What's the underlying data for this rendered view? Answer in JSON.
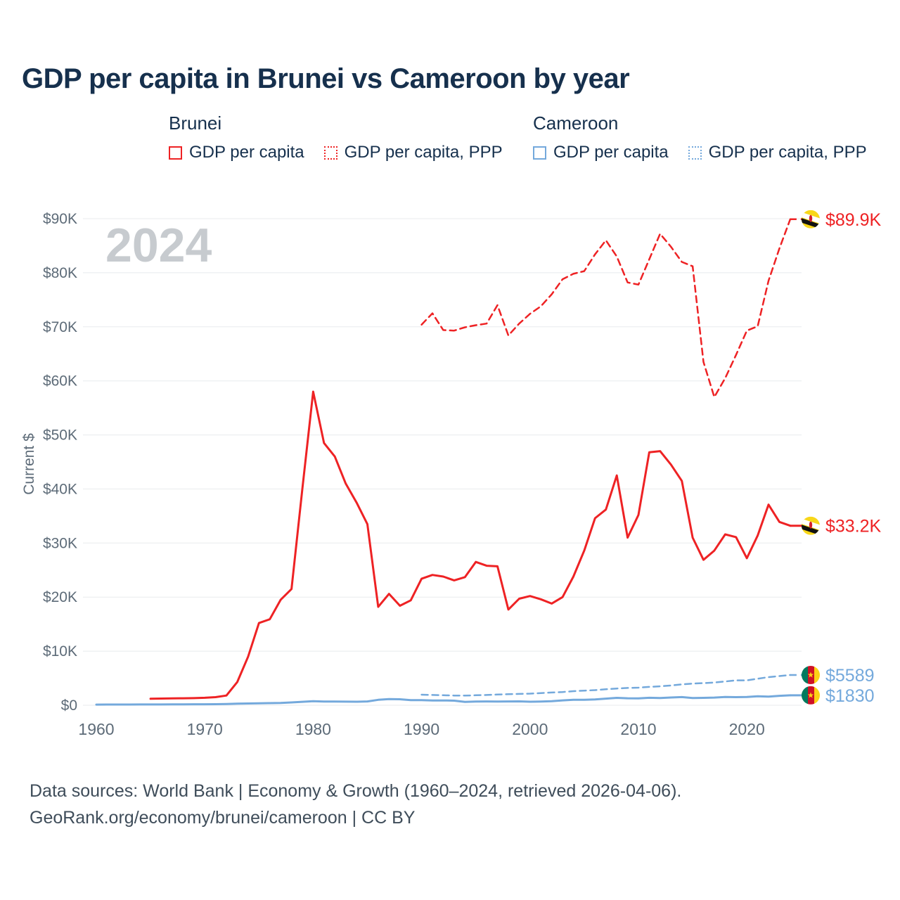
{
  "page": {
    "title": "GDP per capita in Brunei vs Cameroon by year"
  },
  "legend": {
    "groups": [
      {
        "label": "Brunei",
        "color": "#ee2224",
        "items": [
          {
            "label": "GDP per capita",
            "style": "solid"
          },
          {
            "label": "GDP per capita, PPP",
            "style": "dotted"
          }
        ]
      },
      {
        "label": "Cameroon",
        "color": "#74a9dc",
        "items": [
          {
            "label": "GDP per capita",
            "style": "solid"
          },
          {
            "label": "GDP per capita, PPP",
            "style": "dotted"
          }
        ]
      }
    ]
  },
  "footer": {
    "line1": "Data sources: World Bank | Economy & Growth (1960–2024, retrieved 2026-04-06).",
    "line2": "GeoRank.org/economy/brunei/cameroon | CC BY"
  },
  "chart_data": {
    "type": "line",
    "title": "GDP per capita in Brunei vs Cameroon by year",
    "xlabel": "",
    "ylabel": "Current $",
    "watermark": "2024",
    "grid": "horizontal",
    "xlim": [
      1960,
      2024
    ],
    "ylim": [
      0,
      90000
    ],
    "x_ticks": [
      1960,
      1970,
      1980,
      1990,
      2000,
      2010,
      2020
    ],
    "y_ticks": [
      {
        "value": 0,
        "label": "$0"
      },
      {
        "value": 10000,
        "label": "$10K"
      },
      {
        "value": 20000,
        "label": "$20K"
      },
      {
        "value": 30000,
        "label": "$30K"
      },
      {
        "value": 40000,
        "label": "$40K"
      },
      {
        "value": 50000,
        "label": "$50K"
      },
      {
        "value": 60000,
        "label": "$60K"
      },
      {
        "value": 70000,
        "label": "$70K"
      },
      {
        "value": 80000,
        "label": "$80K"
      },
      {
        "value": 90000,
        "label": "$90K"
      }
    ],
    "series": [
      {
        "id": "brunei-gdp-ppp",
        "name": "Brunei GDP per capita, PPP",
        "color": "#ee2224",
        "dash": true,
        "width": 2.5,
        "flag": "brunei",
        "end_label": "$89.9K",
        "points": [
          [
            1990,
            70400
          ],
          [
            1991,
            72500
          ],
          [
            1992,
            69400
          ],
          [
            1993,
            69300
          ],
          [
            1994,
            69900
          ],
          [
            1995,
            70300
          ],
          [
            1996,
            70600
          ],
          [
            1997,
            74000
          ],
          [
            1998,
            68400
          ],
          [
            1999,
            70600
          ],
          [
            2000,
            72400
          ],
          [
            2001,
            73800
          ],
          [
            2002,
            76000
          ],
          [
            2003,
            78800
          ],
          [
            2004,
            79800
          ],
          [
            2005,
            80300
          ],
          [
            2006,
            83400
          ],
          [
            2007,
            86000
          ],
          [
            2008,
            83000
          ],
          [
            2009,
            78200
          ],
          [
            2010,
            77800
          ],
          [
            2011,
            82500
          ],
          [
            2012,
            87200
          ],
          [
            2013,
            84800
          ],
          [
            2014,
            82000
          ],
          [
            2015,
            81200
          ],
          [
            2016,
            63500
          ],
          [
            2017,
            57000
          ],
          [
            2018,
            60500
          ],
          [
            2019,
            64800
          ],
          [
            2020,
            69300
          ],
          [
            2021,
            70100
          ],
          [
            2022,
            78500
          ],
          [
            2023,
            84500
          ],
          [
            2024,
            89900
          ]
        ]
      },
      {
        "id": "brunei-gdp",
        "name": "Brunei GDP per capita",
        "color": "#ee2224",
        "dash": false,
        "width": 3,
        "flag": "brunei",
        "end_label": "$33.2K",
        "points": [
          [
            1965,
            1200
          ],
          [
            1966,
            1240
          ],
          [
            1967,
            1270
          ],
          [
            1968,
            1290
          ],
          [
            1969,
            1320
          ],
          [
            1970,
            1380
          ],
          [
            1971,
            1500
          ],
          [
            1972,
            1800
          ],
          [
            1973,
            4300
          ],
          [
            1974,
            9000
          ],
          [
            1975,
            15200
          ],
          [
            1976,
            15900
          ],
          [
            1977,
            19500
          ],
          [
            1978,
            21500
          ],
          [
            1979,
            40000
          ],
          [
            1980,
            58000
          ],
          [
            1981,
            48500
          ],
          [
            1982,
            46000
          ],
          [
            1983,
            41000
          ],
          [
            1984,
            37500
          ],
          [
            1985,
            33500
          ],
          [
            1986,
            18200
          ],
          [
            1987,
            20600
          ],
          [
            1988,
            18400
          ],
          [
            1989,
            19400
          ],
          [
            1990,
            23400
          ],
          [
            1991,
            24100
          ],
          [
            1992,
            23800
          ],
          [
            1993,
            23100
          ],
          [
            1994,
            23700
          ],
          [
            1995,
            26500
          ],
          [
            1996,
            25800
          ],
          [
            1997,
            25700
          ],
          [
            1998,
            17700
          ],
          [
            1999,
            19700
          ],
          [
            2000,
            20200
          ],
          [
            2001,
            19600
          ],
          [
            2002,
            18800
          ],
          [
            2003,
            20000
          ],
          [
            2004,
            23800
          ],
          [
            2005,
            28600
          ],
          [
            2006,
            34600
          ],
          [
            2007,
            36200
          ],
          [
            2008,
            42500
          ],
          [
            2009,
            31000
          ],
          [
            2010,
            35200
          ],
          [
            2011,
            46800
          ],
          [
            2012,
            47000
          ],
          [
            2013,
            44500
          ],
          [
            2014,
            41500
          ],
          [
            2015,
            31000
          ],
          [
            2016,
            26900
          ],
          [
            2017,
            28600
          ],
          [
            2018,
            31600
          ],
          [
            2019,
            31100
          ],
          [
            2020,
            27200
          ],
          [
            2021,
            31400
          ],
          [
            2022,
            37100
          ],
          [
            2023,
            33900
          ],
          [
            2024,
            33200
          ]
        ]
      },
      {
        "id": "cameroon-gdp-ppp",
        "name": "Cameroon GDP per capita, PPP",
        "color": "#74a9dc",
        "dash": true,
        "width": 2.5,
        "flag": "cameroon",
        "end_label": "$5589",
        "points": [
          [
            1990,
            1950
          ],
          [
            1991,
            1900
          ],
          [
            1992,
            1850
          ],
          [
            1993,
            1800
          ],
          [
            1994,
            1780
          ],
          [
            1995,
            1850
          ],
          [
            1996,
            1900
          ],
          [
            1997,
            1980
          ],
          [
            1998,
            2050
          ],
          [
            1999,
            2100
          ],
          [
            2000,
            2150
          ],
          [
            2001,
            2250
          ],
          [
            2002,
            2350
          ],
          [
            2003,
            2450
          ],
          [
            2004,
            2600
          ],
          [
            2005,
            2700
          ],
          [
            2006,
            2800
          ],
          [
            2007,
            2950
          ],
          [
            2008,
            3100
          ],
          [
            2009,
            3200
          ],
          [
            2010,
            3250
          ],
          [
            2011,
            3400
          ],
          [
            2012,
            3500
          ],
          [
            2013,
            3650
          ],
          [
            2014,
            3850
          ],
          [
            2015,
            4000
          ],
          [
            2016,
            4100
          ],
          [
            2017,
            4200
          ],
          [
            2018,
            4400
          ],
          [
            2019,
            4600
          ],
          [
            2020,
            4600
          ],
          [
            2021,
            4900
          ],
          [
            2022,
            5200
          ],
          [
            2023,
            5400
          ],
          [
            2024,
            5589
          ]
        ]
      },
      {
        "id": "cameroon-gdp",
        "name": "Cameroon GDP per capita",
        "color": "#74a9dc",
        "dash": false,
        "width": 3,
        "flag": "cameroon",
        "end_label": "$1830",
        "points": [
          [
            1960,
            120
          ],
          [
            1961,
            125
          ],
          [
            1962,
            128
          ],
          [
            1963,
            132
          ],
          [
            1964,
            138
          ],
          [
            1965,
            142
          ],
          [
            1966,
            148
          ],
          [
            1967,
            156
          ],
          [
            1968,
            166
          ],
          [
            1969,
            176
          ],
          [
            1970,
            186
          ],
          [
            1971,
            200
          ],
          [
            1972,
            230
          ],
          [
            1973,
            280
          ],
          [
            1974,
            330
          ],
          [
            1975,
            360
          ],
          [
            1976,
            385
          ],
          [
            1977,
            430
          ],
          [
            1978,
            520
          ],
          [
            1979,
            640
          ],
          [
            1980,
            740
          ],
          [
            1981,
            690
          ],
          [
            1982,
            670
          ],
          [
            1983,
            660
          ],
          [
            1984,
            650
          ],
          [
            1985,
            700
          ],
          [
            1986,
            1000
          ],
          [
            1987,
            1150
          ],
          [
            1988,
            1100
          ],
          [
            1989,
            950
          ],
          [
            1990,
            940
          ],
          [
            1991,
            890
          ],
          [
            1992,
            880
          ],
          [
            1993,
            850
          ],
          [
            1994,
            610
          ],
          [
            1995,
            670
          ],
          [
            1996,
            700
          ],
          [
            1997,
            690
          ],
          [
            1998,
            700
          ],
          [
            1999,
            710
          ],
          [
            2000,
            650
          ],
          [
            2001,
            680
          ],
          [
            2002,
            740
          ],
          [
            2003,
            900
          ],
          [
            2004,
            1020
          ],
          [
            2005,
            1000
          ],
          [
            2006,
            1080
          ],
          [
            2007,
            1220
          ],
          [
            2008,
            1370
          ],
          [
            2009,
            1290
          ],
          [
            2010,
            1280
          ],
          [
            2011,
            1380
          ],
          [
            2012,
            1330
          ],
          [
            2013,
            1430
          ],
          [
            2014,
            1510
          ],
          [
            2015,
            1330
          ],
          [
            2016,
            1360
          ],
          [
            2017,
            1420
          ],
          [
            2018,
            1540
          ],
          [
            2019,
            1500
          ],
          [
            2020,
            1540
          ],
          [
            2021,
            1660
          ],
          [
            2022,
            1590
          ],
          [
            2023,
            1740
          ],
          [
            2024,
            1830
          ]
        ]
      }
    ]
  }
}
